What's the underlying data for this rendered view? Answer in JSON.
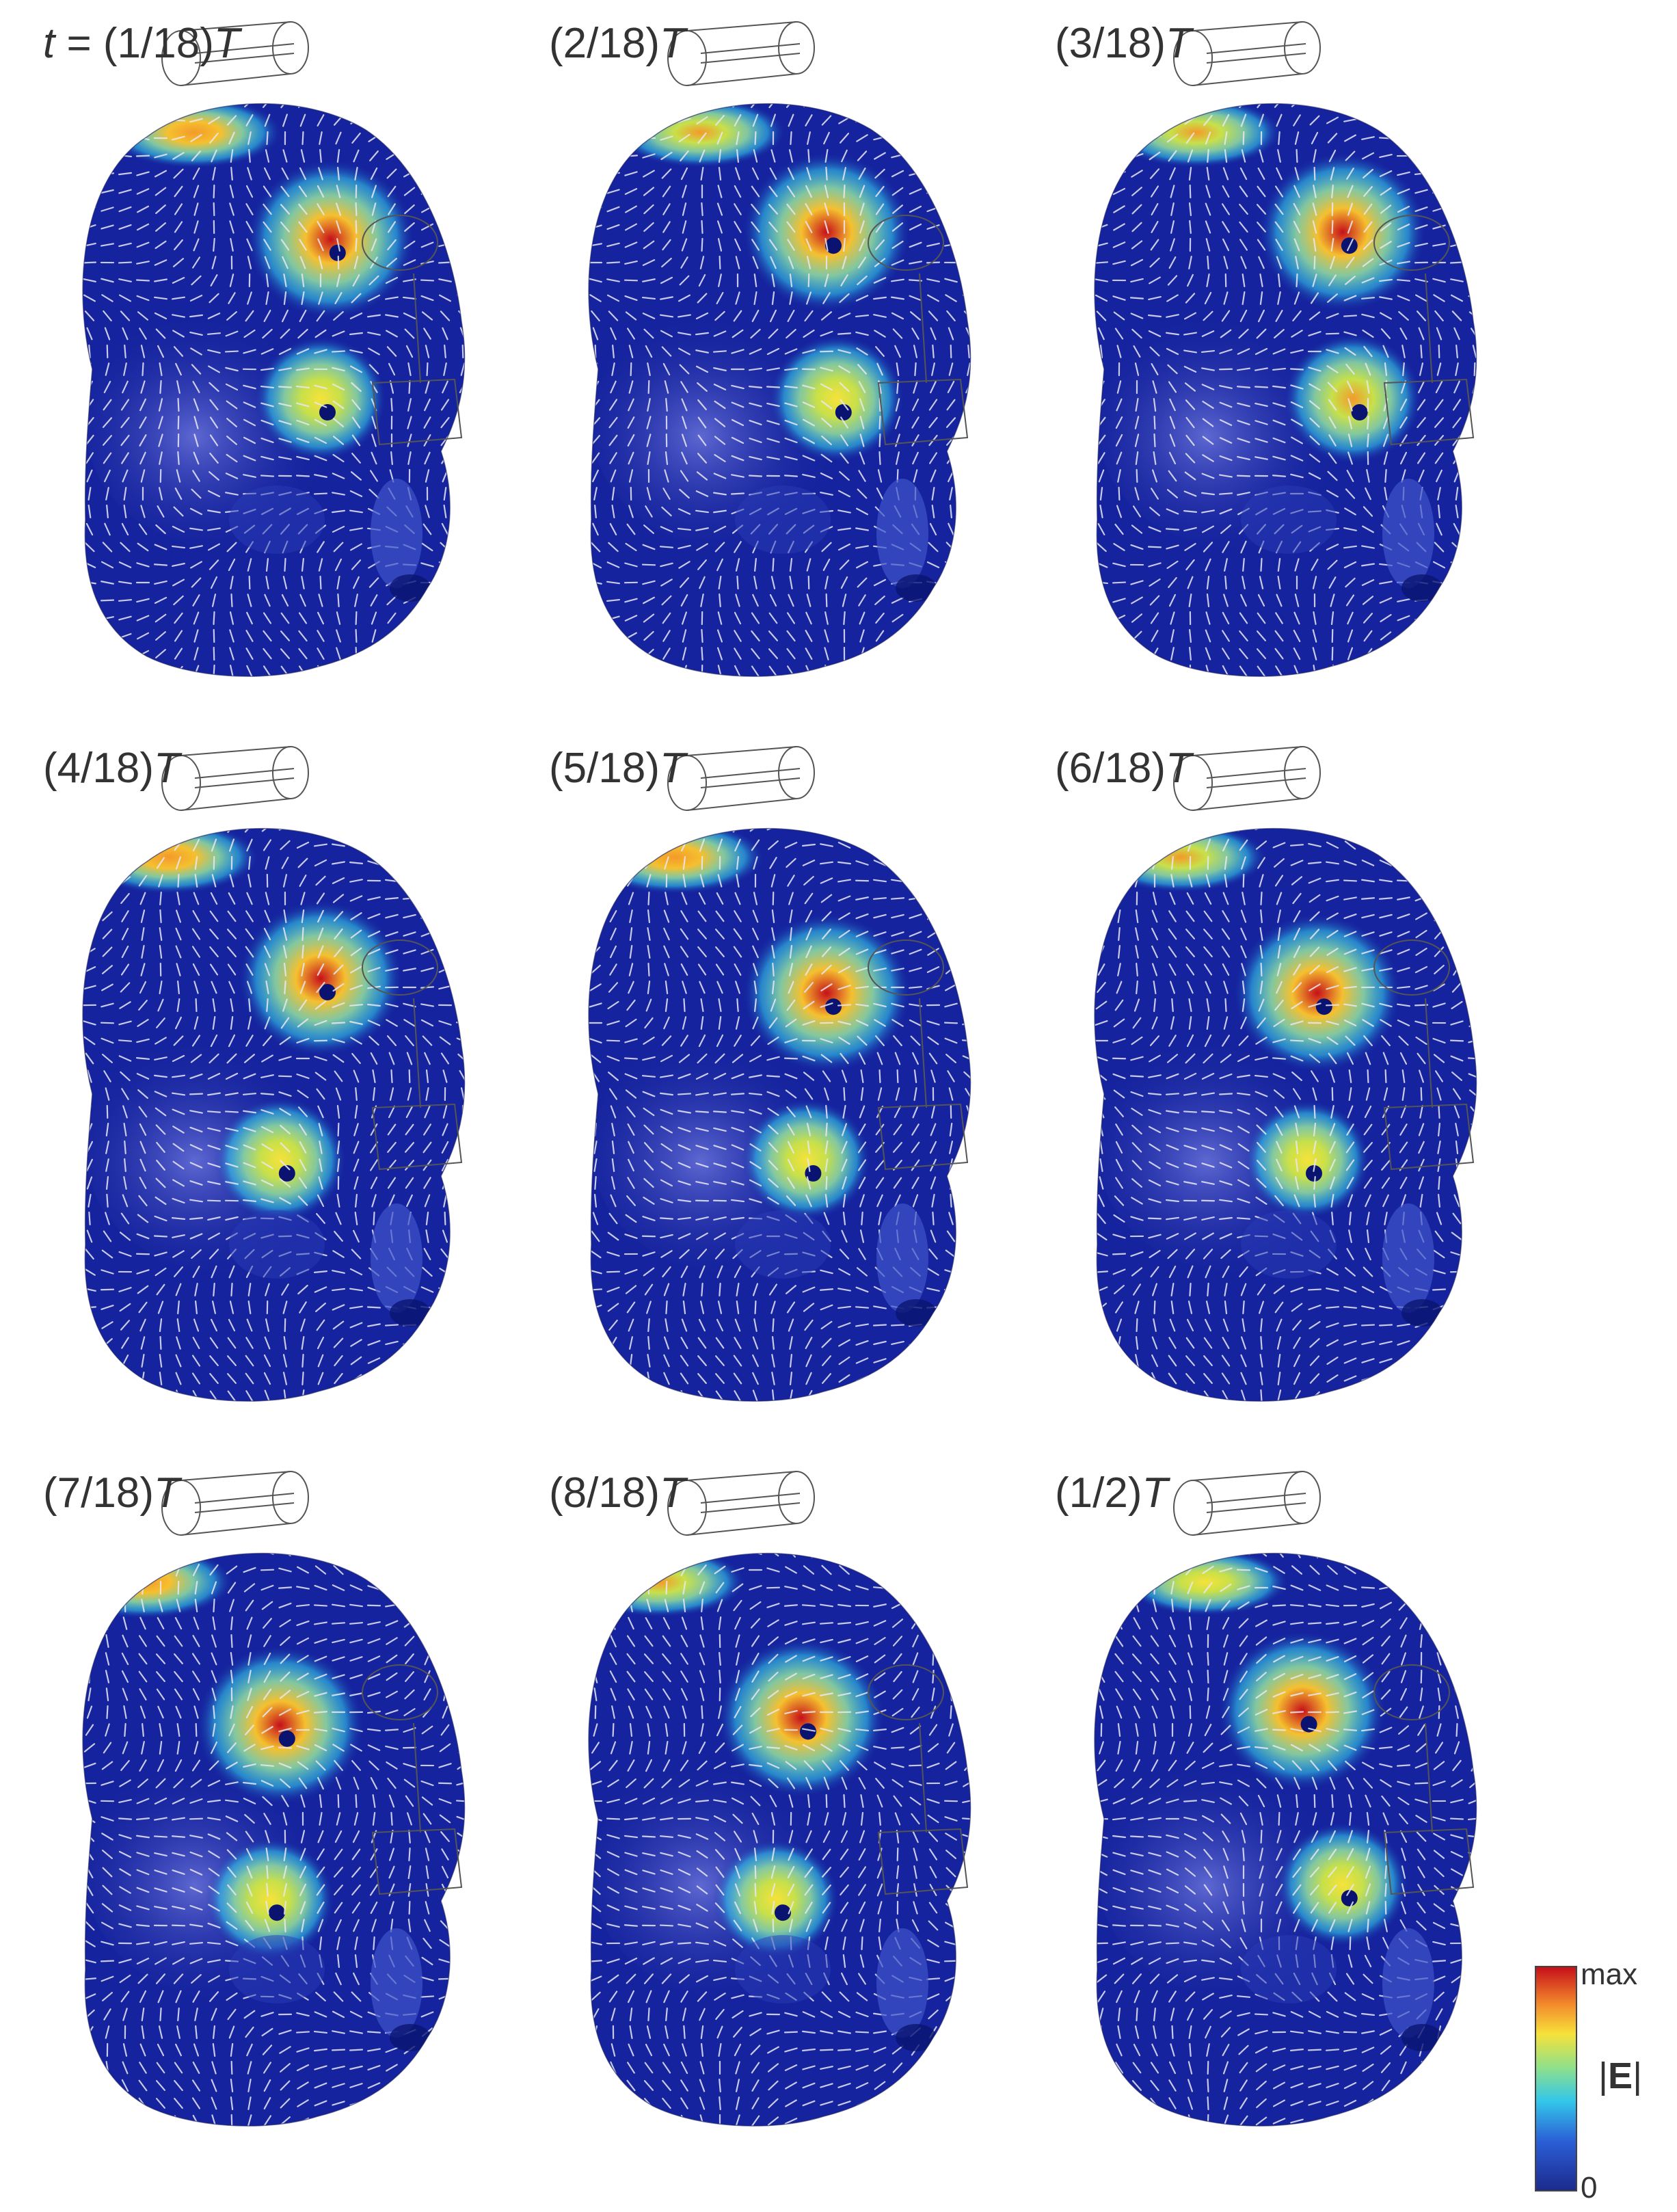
{
  "panels": [
    {
      "label": "(1/18)",
      "prefix": "t = ",
      "T": "T",
      "hot": [
        [
          0.62,
          0.33,
          1.0
        ],
        [
          0.6,
          0.55,
          0.55
        ],
        [
          0.35,
          0.06,
          0.75
        ]
      ]
    },
    {
      "label": "(2/18)",
      "prefix": "",
      "T": "T",
      "hot": [
        [
          0.6,
          0.32,
          1.0
        ],
        [
          0.62,
          0.55,
          0.6
        ],
        [
          0.35,
          0.06,
          0.7
        ]
      ]
    },
    {
      "label": "(3/18)",
      "prefix": "",
      "T": "T",
      "hot": [
        [
          0.62,
          0.32,
          1.0
        ],
        [
          0.64,
          0.55,
          0.65
        ],
        [
          0.33,
          0.06,
          0.7
        ]
      ]
    },
    {
      "label": "(4/18)",
      "prefix": "",
      "T": "T",
      "hot": [
        [
          0.6,
          0.35,
          0.95
        ],
        [
          0.52,
          0.6,
          0.55
        ],
        [
          0.3,
          0.06,
          0.8
        ]
      ]
    },
    {
      "label": "(5/18)",
      "prefix": "",
      "T": "T",
      "hot": [
        [
          0.6,
          0.37,
          1.0
        ],
        [
          0.56,
          0.6,
          0.5
        ],
        [
          0.3,
          0.06,
          0.8
        ]
      ]
    },
    {
      "label": "(6/18)",
      "prefix": "",
      "T": "T",
      "hot": [
        [
          0.57,
          0.37,
          1.0
        ],
        [
          0.55,
          0.6,
          0.45
        ],
        [
          0.3,
          0.06,
          0.7
        ]
      ]
    },
    {
      "label": "(7/18)",
      "prefix": "",
      "T": "T",
      "hot": [
        [
          0.52,
          0.38,
          1.0
        ],
        [
          0.5,
          0.62,
          0.5
        ],
        [
          0.25,
          0.06,
          0.8
        ]
      ]
    },
    {
      "label": "(8/18)",
      "prefix": "",
      "T": "T",
      "hot": [
        [
          0.55,
          0.37,
          1.0
        ],
        [
          0.5,
          0.62,
          0.45
        ],
        [
          0.27,
          0.06,
          0.7
        ]
      ]
    },
    {
      "label": "(1/2)",
      "prefix": "",
      "T": "T",
      "hot": [
        [
          0.54,
          0.36,
          1.0
        ],
        [
          0.62,
          0.6,
          0.55
        ],
        [
          0.35,
          0.06,
          0.6
        ]
      ]
    }
  ],
  "colorbar": {
    "max_label": "max",
    "min_label": "0",
    "quantity": "E"
  },
  "colors": {
    "base": "#15239e",
    "deep": "#0a1470",
    "cyan": "#33c7ea",
    "yellow": "#f6e23a",
    "red": "#c6101a"
  }
}
